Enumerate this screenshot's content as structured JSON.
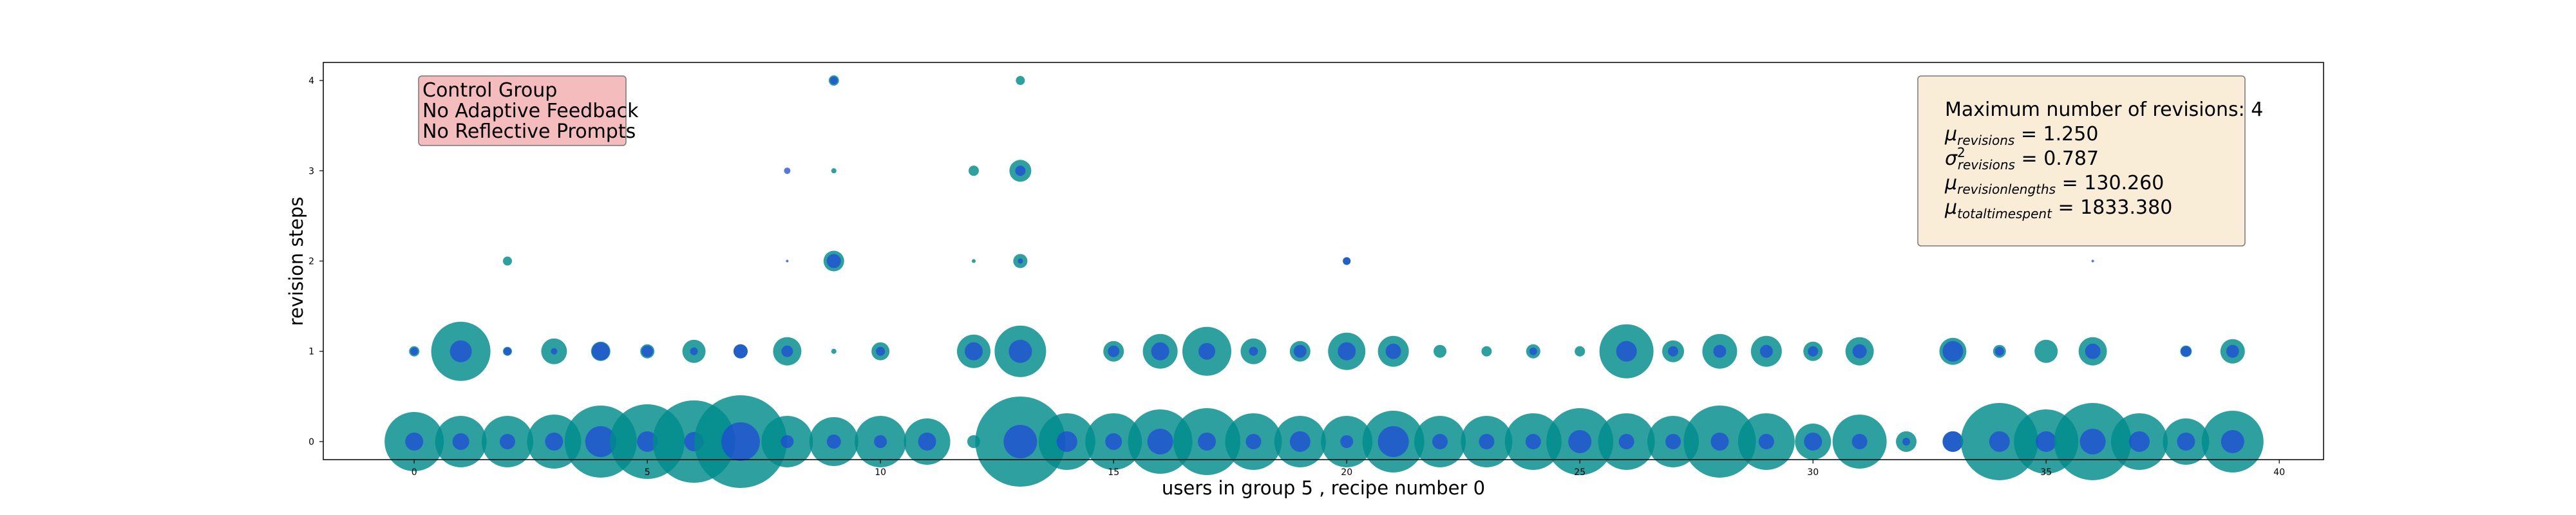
{
  "chart_data": {
    "type": "scatter",
    "title": "",
    "xlabel": "users in group 5 , recipe number 0",
    "ylabel": "revision steps",
    "xlim": [
      -1.95,
      40.95
    ],
    "ylim": [
      -0.2,
      4.2
    ],
    "xticks": [
      0,
      5,
      10,
      15,
      20,
      25,
      30,
      35,
      40
    ],
    "yticks": [
      0,
      1,
      2,
      3,
      4
    ],
    "grid": false,
    "colors": {
      "outer": "#008b8b",
      "inner": "#1f49d6",
      "annotation_left_bg": "#f4bcbc",
      "annotation_right_bg": "#faedd8"
    },
    "annotation_left": {
      "placement": "top-left",
      "lines": [
        "Control Group",
        "No Adaptive Feedback",
        "No Reflective Prompts"
      ]
    },
    "annotation_right": {
      "placement": "top-right",
      "lines": [
        {
          "plain": "Maximum number of revisions: 4"
        },
        {
          "sym": "μ",
          "sub": "revisions",
          "value": "1.250"
        },
        {
          "sym": "σ",
          "sup": "2",
          "sub": "revisions",
          "value": "0.787"
        },
        {
          "sym": "μ",
          "sub": "revisionlengths",
          "value": "130.260"
        },
        {
          "sym": "μ",
          "sub": "totaltimespent",
          "value": "1833.380"
        }
      ]
    },
    "series": [
      {
        "name": "",
        "points": [
          {
            "x": 0,
            "y": 0,
            "outer": 46,
            "inner": 14
          },
          {
            "x": 1,
            "y": 0,
            "outer": 40,
            "inner": 13
          },
          {
            "x": 2,
            "y": 0,
            "outer": 40,
            "inner": 12
          },
          {
            "x": 3,
            "y": 0,
            "outer": 42,
            "inner": 14
          },
          {
            "x": 4,
            "y": 0,
            "outer": 56,
            "inner": 24
          },
          {
            "x": 5,
            "y": 0,
            "outer": 58,
            "inner": 16
          },
          {
            "x": 6,
            "y": 0,
            "outer": 64,
            "inner": 15
          },
          {
            "x": 7,
            "y": 0,
            "outer": 72,
            "inner": 30
          },
          {
            "x": 8,
            "y": 0,
            "outer": 40,
            "inner": 10
          },
          {
            "x": 9,
            "y": 0,
            "outer": 38,
            "inner": 11
          },
          {
            "x": 10,
            "y": 0,
            "outer": 40,
            "inner": 10
          },
          {
            "x": 11,
            "y": 0,
            "outer": 36,
            "inner": 14
          },
          {
            "x": 12,
            "y": 0,
            "outer": 10,
            "inner": 0
          },
          {
            "x": 13,
            "y": 0,
            "outer": 70,
            "inner": 26
          },
          {
            "x": 14,
            "y": 0,
            "outer": 44,
            "inner": 16
          },
          {
            "x": 15,
            "y": 0,
            "outer": 44,
            "inner": 13
          },
          {
            "x": 16,
            "y": 0,
            "outer": 50,
            "inner": 20
          },
          {
            "x": 17,
            "y": 0,
            "outer": 52,
            "inner": 14
          },
          {
            "x": 18,
            "y": 0,
            "outer": 44,
            "inner": 12
          },
          {
            "x": 19,
            "y": 0,
            "outer": 40,
            "inner": 16
          },
          {
            "x": 20,
            "y": 0,
            "outer": 40,
            "inner": 10
          },
          {
            "x": 21,
            "y": 0,
            "outer": 48,
            "inner": 24
          },
          {
            "x": 22,
            "y": 0,
            "outer": 40,
            "inner": 12
          },
          {
            "x": 23,
            "y": 0,
            "outer": 40,
            "inner": 12
          },
          {
            "x": 24,
            "y": 0,
            "outer": 44,
            "inner": 12
          },
          {
            "x": 25,
            "y": 0,
            "outer": 52,
            "inner": 18
          },
          {
            "x": 26,
            "y": 0,
            "outer": 44,
            "inner": 12
          },
          {
            "x": 27,
            "y": 0,
            "outer": 40,
            "inner": 12
          },
          {
            "x": 28,
            "y": 0,
            "outer": 56,
            "inner": 14
          },
          {
            "x": 29,
            "y": 0,
            "outer": 44,
            "inner": 12
          },
          {
            "x": 30,
            "y": 0,
            "outer": 28,
            "inner": 14
          },
          {
            "x": 31,
            "y": 0,
            "outer": 42,
            "inner": 12
          },
          {
            "x": 32,
            "y": 0,
            "outer": 16,
            "inner": 6
          },
          {
            "x": 33,
            "y": 0,
            "outer": 16,
            "inner": 16
          },
          {
            "x": 34,
            "y": 0,
            "outer": 60,
            "inner": 16
          },
          {
            "x": 35,
            "y": 0,
            "outer": 50,
            "inner": 16
          },
          {
            "x": 36,
            "y": 0,
            "outer": 60,
            "inner": 20
          },
          {
            "x": 37,
            "y": 0,
            "outer": 44,
            "inner": 16
          },
          {
            "x": 38,
            "y": 0,
            "outer": 36,
            "inner": 14
          },
          {
            "x": 39,
            "y": 0,
            "outer": 48,
            "inner": 18
          },
          {
            "x": 0,
            "y": 1,
            "outer": 8,
            "inner": 6
          },
          {
            "x": 1,
            "y": 1,
            "outer": 46,
            "inner": 17
          },
          {
            "x": 2,
            "y": 1,
            "outer": 7,
            "inner": 6
          },
          {
            "x": 3,
            "y": 1,
            "outer": 20,
            "inner": 5
          },
          {
            "x": 4,
            "y": 1,
            "outer": 15,
            "inner": 14
          },
          {
            "x": 5,
            "y": 1,
            "outer": 11,
            "inner": 9
          },
          {
            "x": 6,
            "y": 1,
            "outer": 18,
            "inner": 6
          },
          {
            "x": 7,
            "y": 1,
            "outer": 11,
            "inner": 11
          },
          {
            "x": 8,
            "y": 1,
            "outer": 22,
            "inner": 9
          },
          {
            "x": 9,
            "y": 1,
            "outer": 4,
            "inner": 0
          },
          {
            "x": 10,
            "y": 1,
            "outer": 14,
            "inner": 7
          },
          {
            "x": 12,
            "y": 1,
            "outer": 26,
            "inner": 14
          },
          {
            "x": 13,
            "y": 1,
            "outer": 40,
            "inner": 18
          },
          {
            "x": 15,
            "y": 1,
            "outer": 16,
            "inner": 9
          },
          {
            "x": 16,
            "y": 1,
            "outer": 27,
            "inner": 14
          },
          {
            "x": 17,
            "y": 1,
            "outer": 38,
            "inner": 13
          },
          {
            "x": 18,
            "y": 1,
            "outer": 20,
            "inner": 7
          },
          {
            "x": 19,
            "y": 1,
            "outer": 16,
            "inner": 10
          },
          {
            "x": 20,
            "y": 1,
            "outer": 29,
            "inner": 14
          },
          {
            "x": 21,
            "y": 1,
            "outer": 24,
            "inner": 12
          },
          {
            "x": 22,
            "y": 1,
            "outer": 10,
            "inner": 0
          },
          {
            "x": 23,
            "y": 1,
            "outer": 8,
            "inner": 0
          },
          {
            "x": 24,
            "y": 1,
            "outer": 11,
            "inner": 6
          },
          {
            "x": 25,
            "y": 1,
            "outer": 8,
            "inner": 0
          },
          {
            "x": 26,
            "y": 1,
            "outer": 42,
            "inner": 16
          },
          {
            "x": 27,
            "y": 1,
            "outer": 17,
            "inner": 8
          },
          {
            "x": 28,
            "y": 1,
            "outer": 27,
            "inner": 10
          },
          {
            "x": 29,
            "y": 1,
            "outer": 24,
            "inner": 10
          },
          {
            "x": 30,
            "y": 1,
            "outer": 15,
            "inner": 8
          },
          {
            "x": 31,
            "y": 1,
            "outer": 22,
            "inner": 11
          },
          {
            "x": 33,
            "y": 1,
            "outer": 21,
            "inner": 16
          },
          {
            "x": 34,
            "y": 1,
            "outer": 10,
            "inner": 7
          },
          {
            "x": 35,
            "y": 1,
            "outer": 18,
            "inner": 0
          },
          {
            "x": 36,
            "y": 1,
            "outer": 22,
            "inner": 12
          },
          {
            "x": 38,
            "y": 1,
            "outer": 9,
            "inner": 8
          },
          {
            "x": 39,
            "y": 1,
            "outer": 19,
            "inner": 10
          },
          {
            "x": 2,
            "y": 2,
            "outer": 7,
            "inner": 0
          },
          {
            "x": 8,
            "y": 2,
            "outer": 0,
            "inner": 2
          },
          {
            "x": 9,
            "y": 2,
            "outer": 16,
            "inner": 11
          },
          {
            "x": 12,
            "y": 2,
            "outer": 3,
            "inner": 0
          },
          {
            "x": 13,
            "y": 2,
            "outer": 11,
            "inner": 4
          },
          {
            "x": 20,
            "y": 2,
            "outer": 6,
            "inner": 6
          },
          {
            "x": 36,
            "y": 2,
            "outer": 0,
            "inner": 2
          },
          {
            "x": 8,
            "y": 3,
            "outer": 0,
            "inner": 5
          },
          {
            "x": 9,
            "y": 3,
            "outer": 4,
            "inner": 0
          },
          {
            "x": 12,
            "y": 3,
            "outer": 8,
            "inner": 0
          },
          {
            "x": 13,
            "y": 3,
            "outer": 17,
            "inner": 8
          },
          {
            "x": 9,
            "y": 4,
            "outer": 8,
            "inner": 6
          },
          {
            "x": 13,
            "y": 4,
            "outer": 7,
            "inner": 0
          }
        ]
      }
    ]
  }
}
